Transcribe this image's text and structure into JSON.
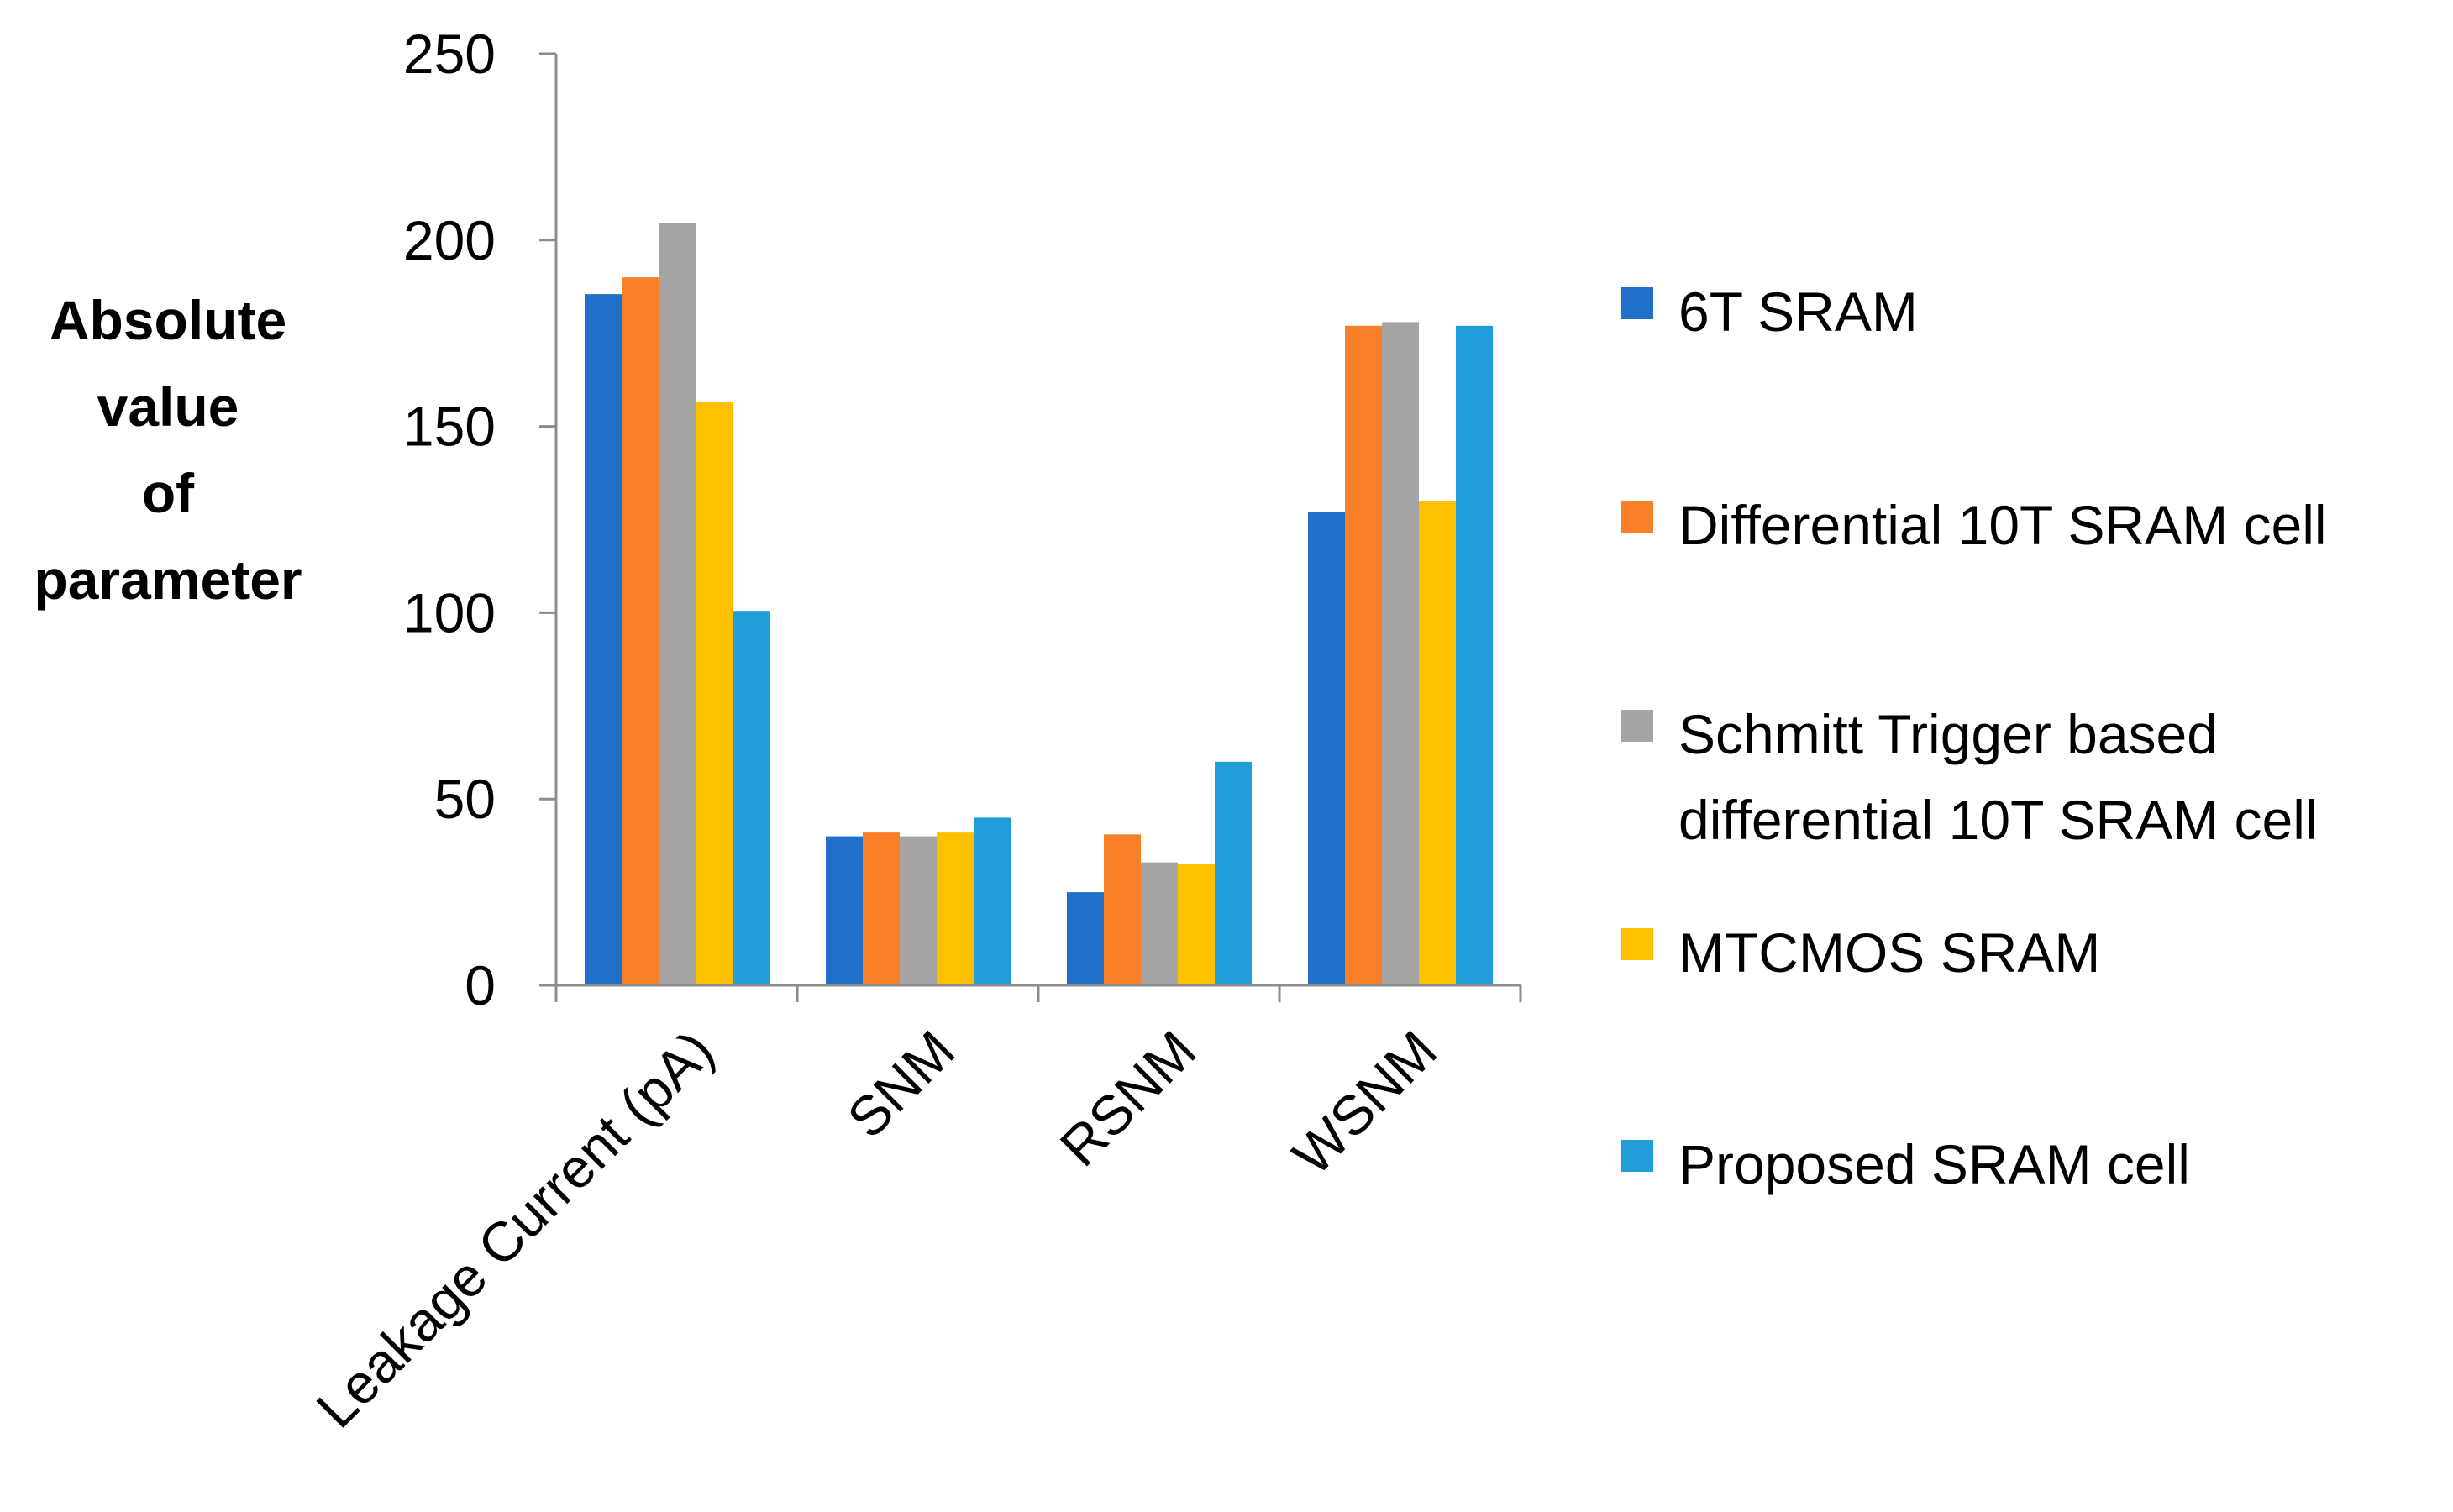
{
  "chart_data": {
    "type": "bar",
    "title": "",
    "ylabel": [
      "Absolute",
      "value",
      "of",
      "parameter"
    ],
    "xlabel": "",
    "ylim": [
      0,
      250
    ],
    "yticks": [
      0,
      50,
      100,
      150,
      200,
      250
    ],
    "ytick_labels": [
      "0",
      "50",
      "100",
      "150",
      "200",
      "250"
    ],
    "categories": [
      "Leakage Current (pA)",
      "SNM",
      "RSNM",
      "WSNM"
    ],
    "grid": false,
    "legend_position": "right",
    "series": [
      {
        "name": "6T SRAM",
        "label_lines": [
          "6T SRAM"
        ],
        "color": "#1F70C8",
        "values": [
          185.5,
          40,
          25,
          127
        ]
      },
      {
        "name": "Differential 10T SRAM cell",
        "label_lines": [
          "Differential 10T SRAM cell"
        ],
        "color": "#F97E28",
        "values": [
          190,
          41,
          40.5,
          177
        ]
      },
      {
        "name": "Schmitt Trigger based differential 10T SRAM cell",
        "label_lines": [
          "Schmitt Trigger based",
          "differential 10T SRAM cell"
        ],
        "color": "#A5A5A5",
        "values": [
          204.5,
          40,
          33,
          178
        ]
      },
      {
        "name": "MTCMOS SRAM",
        "label_lines": [
          "MTCMOS SRAM"
        ],
        "color": "#FFC000",
        "values": [
          156.5,
          41,
          32.5,
          130
        ]
      },
      {
        "name": "Proposed SRAM cell",
        "label_lines": [
          "Proposed SRAM cell"
        ],
        "color": "#1F9ED9",
        "values": [
          100.5,
          45,
          60,
          177
        ]
      }
    ]
  }
}
